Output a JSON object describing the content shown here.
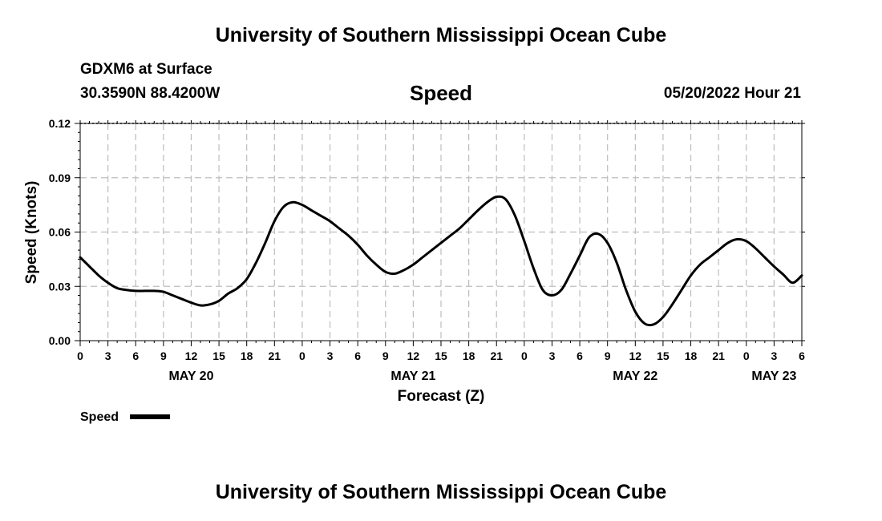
{
  "header": {
    "title": "University of Southern Mississippi Ocean Cube",
    "station": "GDXM6 at Surface",
    "location": "30.3590N  88.4200W",
    "variable": "Speed",
    "datetime": "05/20/2022 Hour 21"
  },
  "footer": {
    "title": "University of Southern Mississippi Ocean Cube"
  },
  "legend": {
    "label": "Speed"
  },
  "chart_data": {
    "type": "line",
    "title": "Speed",
    "xlabel": "Forecast (Z)",
    "ylabel": "Speed (Knots)",
    "ylim": [
      0,
      0.12
    ],
    "yticks": [
      "0.00",
      "0.03",
      "0.06",
      "0.09",
      "0.12"
    ],
    "ytick_values": [
      0,
      0.03,
      0.06,
      0.09,
      0.12
    ],
    "xlim_hours": [
      0,
      78
    ],
    "xtick_labels": [
      "0",
      "3",
      "6",
      "9",
      "12",
      "15",
      "18",
      "21",
      "0",
      "3",
      "6",
      "9",
      "12",
      "15",
      "18",
      "21",
      "0",
      "3",
      "6",
      "9",
      "12",
      "15",
      "18",
      "21",
      "0",
      "3",
      "6"
    ],
    "date_labels": [
      {
        "label": "MAY 20",
        "hour": 12
      },
      {
        "label": "MAY 21",
        "hour": 36
      },
      {
        "label": "MAY 22",
        "hour": 60
      },
      {
        "label": "MAY 23",
        "hour": 75
      }
    ],
    "grid": true,
    "series": [
      {
        "name": "Speed",
        "color": "#000000",
        "x_hours": [
          0,
          1,
          2,
          3,
          4,
          5,
          6,
          7,
          8,
          9,
          10,
          11,
          12,
          13,
          14,
          15,
          16,
          17,
          18,
          19,
          20,
          21,
          22,
          23,
          24,
          25,
          26,
          27,
          28,
          29,
          30,
          31,
          32,
          33,
          34,
          35,
          36,
          37,
          38,
          39,
          40,
          41,
          42,
          43,
          44,
          45,
          46,
          47,
          48,
          49,
          50,
          51,
          52,
          53,
          54,
          55,
          56,
          57,
          58,
          59,
          60,
          61,
          62,
          63,
          64,
          65,
          66,
          67,
          68,
          69,
          70,
          71,
          72,
          73,
          74,
          75,
          76,
          77,
          78
        ],
        "values": [
          0.046,
          0.041,
          0.036,
          0.032,
          0.029,
          0.028,
          0.0275,
          0.0275,
          0.0275,
          0.027,
          0.025,
          0.023,
          0.021,
          0.0195,
          0.02,
          0.022,
          0.026,
          0.029,
          0.034,
          0.043,
          0.054,
          0.066,
          0.074,
          0.0765,
          0.075,
          0.072,
          0.069,
          0.066,
          0.062,
          0.058,
          0.053,
          0.047,
          0.042,
          0.038,
          0.037,
          0.039,
          0.042,
          0.046,
          0.05,
          0.054,
          0.058,
          0.062,
          0.067,
          0.072,
          0.0765,
          0.0795,
          0.078,
          0.069,
          0.055,
          0.04,
          0.028,
          0.025,
          0.028,
          0.037,
          0.047,
          0.057,
          0.059,
          0.054,
          0.043,
          0.028,
          0.016,
          0.0095,
          0.009,
          0.013,
          0.02,
          0.028,
          0.036,
          0.042,
          0.046,
          0.05,
          0.054,
          0.056,
          0.055,
          0.051,
          0.046,
          0.041,
          0.0365,
          0.032,
          0.036
        ]
      }
    ]
  }
}
